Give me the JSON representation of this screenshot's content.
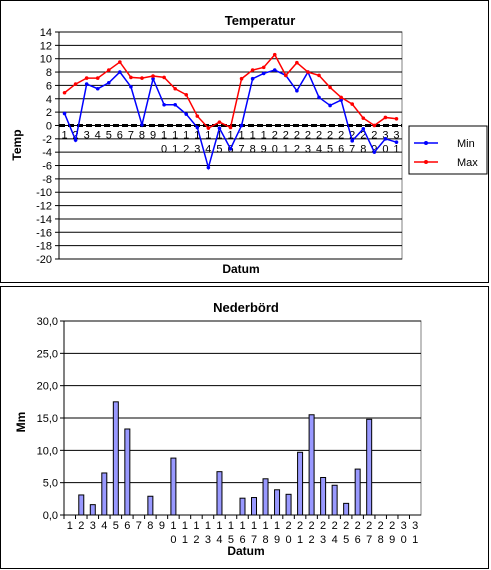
{
  "chart_data": [
    {
      "type": "line",
      "title": "Temperatur",
      "xlabel": "Datum",
      "ylabel": "Temp",
      "ylim": [
        -20,
        14
      ],
      "yticks": [
        14,
        12,
        10,
        8,
        6,
        4,
        2,
        0,
        -2,
        -4,
        -6,
        -8,
        -10,
        -12,
        -14,
        -16,
        -18,
        -20
      ],
      "grid": true,
      "legend_position": "right",
      "x": [
        1,
        2,
        3,
        4,
        5,
        6,
        7,
        8,
        9,
        10,
        11,
        12,
        13,
        14,
        15,
        16,
        17,
        18,
        19,
        20,
        21,
        22,
        23,
        24,
        25,
        26,
        27,
        28,
        29,
        30,
        31
      ],
      "series": [
        {
          "name": "Min",
          "color": "#0000ff",
          "values": [
            1.8,
            -2.2,
            6.2,
            5.5,
            6.4,
            8.0,
            5.8,
            0.1,
            7.0,
            3.1,
            3.1,
            1.7,
            -0.3,
            -6.3,
            -0.4,
            -3.5,
            0.0,
            7.0,
            7.8,
            8.3,
            7.5,
            5.2,
            8.0,
            4.2,
            3.0,
            3.8,
            -2.3,
            -0.5,
            -4.0,
            -2.0,
            -2.5
          ]
        },
        {
          "name": "Max",
          "color": "#ff0000",
          "values": [
            4.9,
            6.2,
            7.1,
            7.1,
            8.3,
            9.5,
            7.2,
            7.1,
            7.4,
            7.2,
            5.5,
            4.6,
            1.4,
            -0.4,
            0.5,
            -0.3,
            7.0,
            8.3,
            8.7,
            10.6,
            7.5,
            9.4,
            8.0,
            7.5,
            5.7,
            4.2,
            3.2,
            1.1,
            0.0,
            1.2,
            1.0
          ]
        }
      ]
    },
    {
      "type": "bar",
      "title": "Nederbörd",
      "xlabel": "Datum",
      "ylabel": "Mm",
      "ylim": [
        0,
        30
      ],
      "yticks": [
        "30,0",
        "25,0",
        "20,0",
        "15,0",
        "10,0",
        "5,0",
        "0,0"
      ],
      "grid": true,
      "bar_color": "#9999ff",
      "categories": [
        1,
        2,
        3,
        4,
        5,
        6,
        7,
        8,
        9,
        10,
        11,
        12,
        13,
        14,
        15,
        16,
        17,
        18,
        19,
        20,
        21,
        22,
        23,
        24,
        25,
        26,
        27,
        28,
        29,
        30,
        31
      ],
      "values": [
        0,
        3.1,
        1.6,
        6.5,
        17.5,
        13.3,
        0,
        2.9,
        0,
        8.8,
        0,
        0,
        0,
        6.7,
        0,
        2.6,
        2.7,
        5.6,
        3.9,
        3.2,
        9.7,
        15.5,
        5.8,
        4.6,
        1.8,
        7.1,
        14.8,
        0,
        0,
        0,
        0
      ]
    }
  ]
}
